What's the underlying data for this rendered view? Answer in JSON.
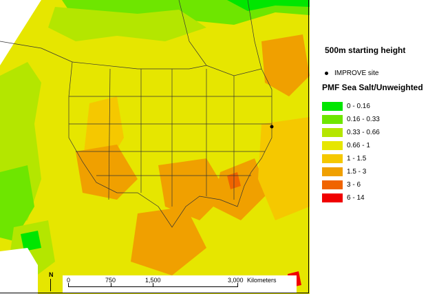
{
  "map": {
    "title": "500m starting height",
    "site_marker_label": "IMPROVE site",
    "variable_title": "PMF Sea Salt/Unweighted",
    "legend": [
      {
        "label": "0 - 0.16",
        "color": "#00e600"
      },
      {
        "label": "0.16 - 0.33",
        "color": "#6ee600"
      },
      {
        "label": "0.33 - 0.66",
        "color": "#b4e600"
      },
      {
        "label": "0.66 - 1",
        "color": "#e6e600"
      },
      {
        "label": "1 - 1.5",
        "color": "#f5c800"
      },
      {
        "label": "1.5 - 3",
        "color": "#f0a000"
      },
      {
        "label": "3 - 6",
        "color": "#f06400"
      },
      {
        "label": "6 - 14",
        "color": "#f00000"
      }
    ],
    "scale_bar": {
      "ticks": [
        "0",
        "750",
        "1,500",
        "3,000"
      ],
      "unit": "Kilometers"
    },
    "north_label": "N"
  }
}
